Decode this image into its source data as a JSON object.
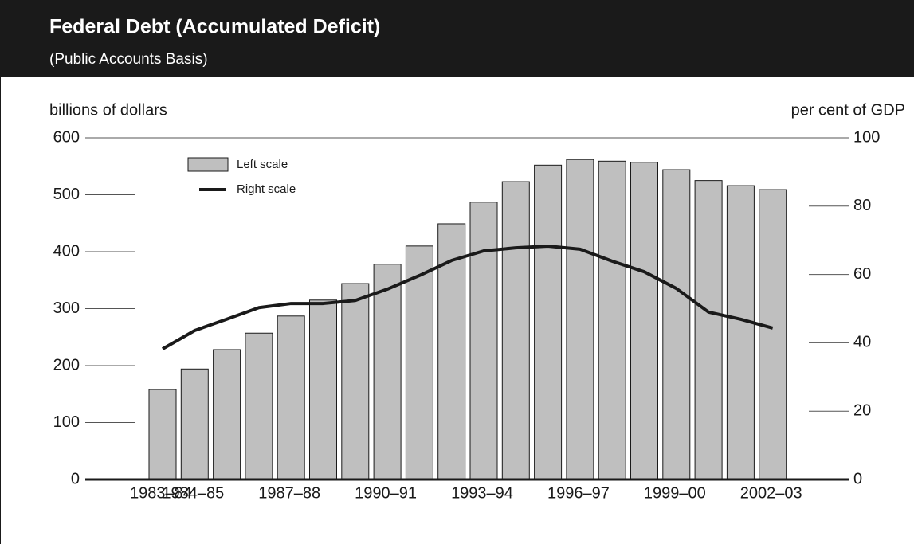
{
  "chart_data": {
    "type": "bar",
    "title": "Federal Debt (Accumulated Deficit)",
    "subtitle": "(Public Accounts Basis)",
    "y_label": "billions of dollars",
    "y2_label": "per cent of GDP",
    "categories": [
      "1983–84",
      "1984–85",
      null,
      null,
      "1987–88",
      null,
      null,
      "1990–91",
      null,
      null,
      "1993–94",
      null,
      null,
      "1996–97",
      null,
      null,
      "1999–00",
      null,
      null,
      "2002–03"
    ],
    "series": [
      {
        "name": "Left scale",
        "type": "bar",
        "color": "#bfbfbf",
        "values": [
          158,
          194,
          228,
          257,
          287,
          315,
          344,
          378,
          410,
          449,
          487,
          523,
          552,
          562,
          559,
          557,
          544,
          525,
          516,
          509
        ]
      },
      {
        "name": "Right scale",
        "type": "line",
        "axis": "y2",
        "color": "#1a1a1a",
        "values": [
          38.2,
          43.6,
          46.9,
          50.3,
          51.5,
          51.5,
          52.4,
          55.7,
          59.7,
          64.1,
          66.9,
          67.8,
          68.3,
          67.4,
          63.9,
          60.8,
          55.9,
          49.0,
          46.9,
          44.3
        ]
      }
    ],
    "ylim": [
      0,
      600
    ],
    "yticks": [
      0,
      100,
      200,
      300,
      400,
      500,
      600
    ],
    "y2lim": [
      0,
      100
    ],
    "y2ticks": [
      0,
      20,
      40,
      60,
      80,
      100
    ]
  }
}
